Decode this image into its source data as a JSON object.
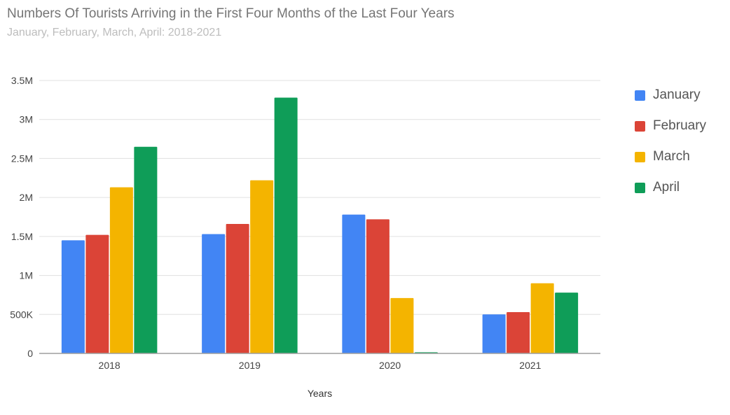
{
  "chart_data": {
    "type": "bar",
    "title": "Numbers Of Tourists Arriving in the First Four Months of the Last Four Years",
    "subtitle": "January, February, March, April: 2018-2021",
    "xlabel": "Years",
    "ylabel": "",
    "categories": [
      "2018",
      "2019",
      "2020",
      "2021"
    ],
    "ylim": [
      0,
      3500000
    ],
    "yticks": [
      0,
      500000,
      1000000,
      1500000,
      2000000,
      2500000,
      3000000,
      3500000
    ],
    "ytick_labels": [
      "0",
      "500K",
      "1M",
      "1.5M",
      "2M",
      "2.5M",
      "3M",
      "3.5M"
    ],
    "grid": true,
    "legend_position": "right",
    "series": [
      {
        "name": "January",
        "color": "#4285f4",
        "values": [
          1450000,
          1530000,
          1780000,
          500000
        ]
      },
      {
        "name": "February",
        "color": "#db4437",
        "values": [
          1520000,
          1660000,
          1720000,
          530000
        ]
      },
      {
        "name": "March",
        "color": "#f4b400",
        "values": [
          2130000,
          2220000,
          710000,
          900000
        ]
      },
      {
        "name": "April",
        "color": "#0f9d58",
        "values": [
          2650000,
          3280000,
          15000,
          780000
        ]
      }
    ]
  }
}
